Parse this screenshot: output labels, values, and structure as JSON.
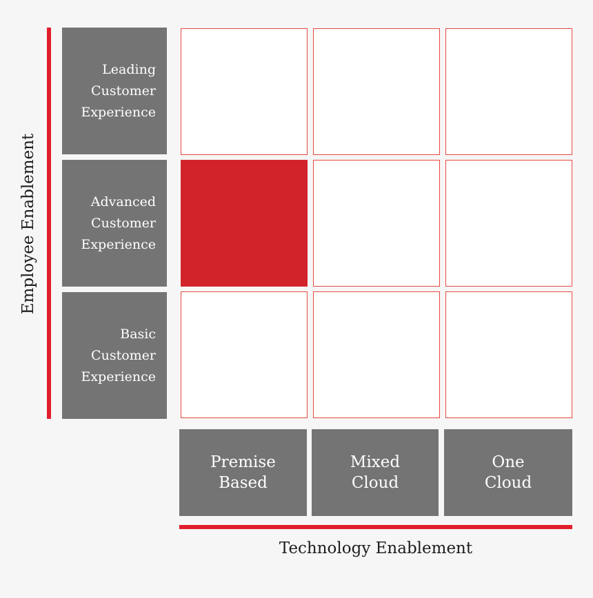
{
  "y_axis": {
    "title": "Employee Enablement"
  },
  "x_axis": {
    "title": "Technology Enablement"
  },
  "rows": [
    {
      "lines": [
        "Leading",
        "Customer",
        "Experience"
      ]
    },
    {
      "lines": [
        "Advanced",
        "Customer",
        "Experience"
      ]
    },
    {
      "lines": [
        "Basic",
        "Customer",
        "Experience"
      ]
    }
  ],
  "columns": [
    {
      "lines": [
        "Premise",
        "Based"
      ]
    },
    {
      "lines": [
        "Mixed",
        "Cloud"
      ]
    },
    {
      "lines": [
        "One",
        "Cloud"
      ]
    }
  ],
  "highlighted_cell": {
    "row": "Advanced Customer Experience",
    "column": "Premise Based"
  },
  "colors": {
    "accent": "#e11d2b",
    "highlight": "#d3232a",
    "label_bg": "#747474",
    "cell_border": "#e8483f",
    "background": "#f6f6f6"
  }
}
